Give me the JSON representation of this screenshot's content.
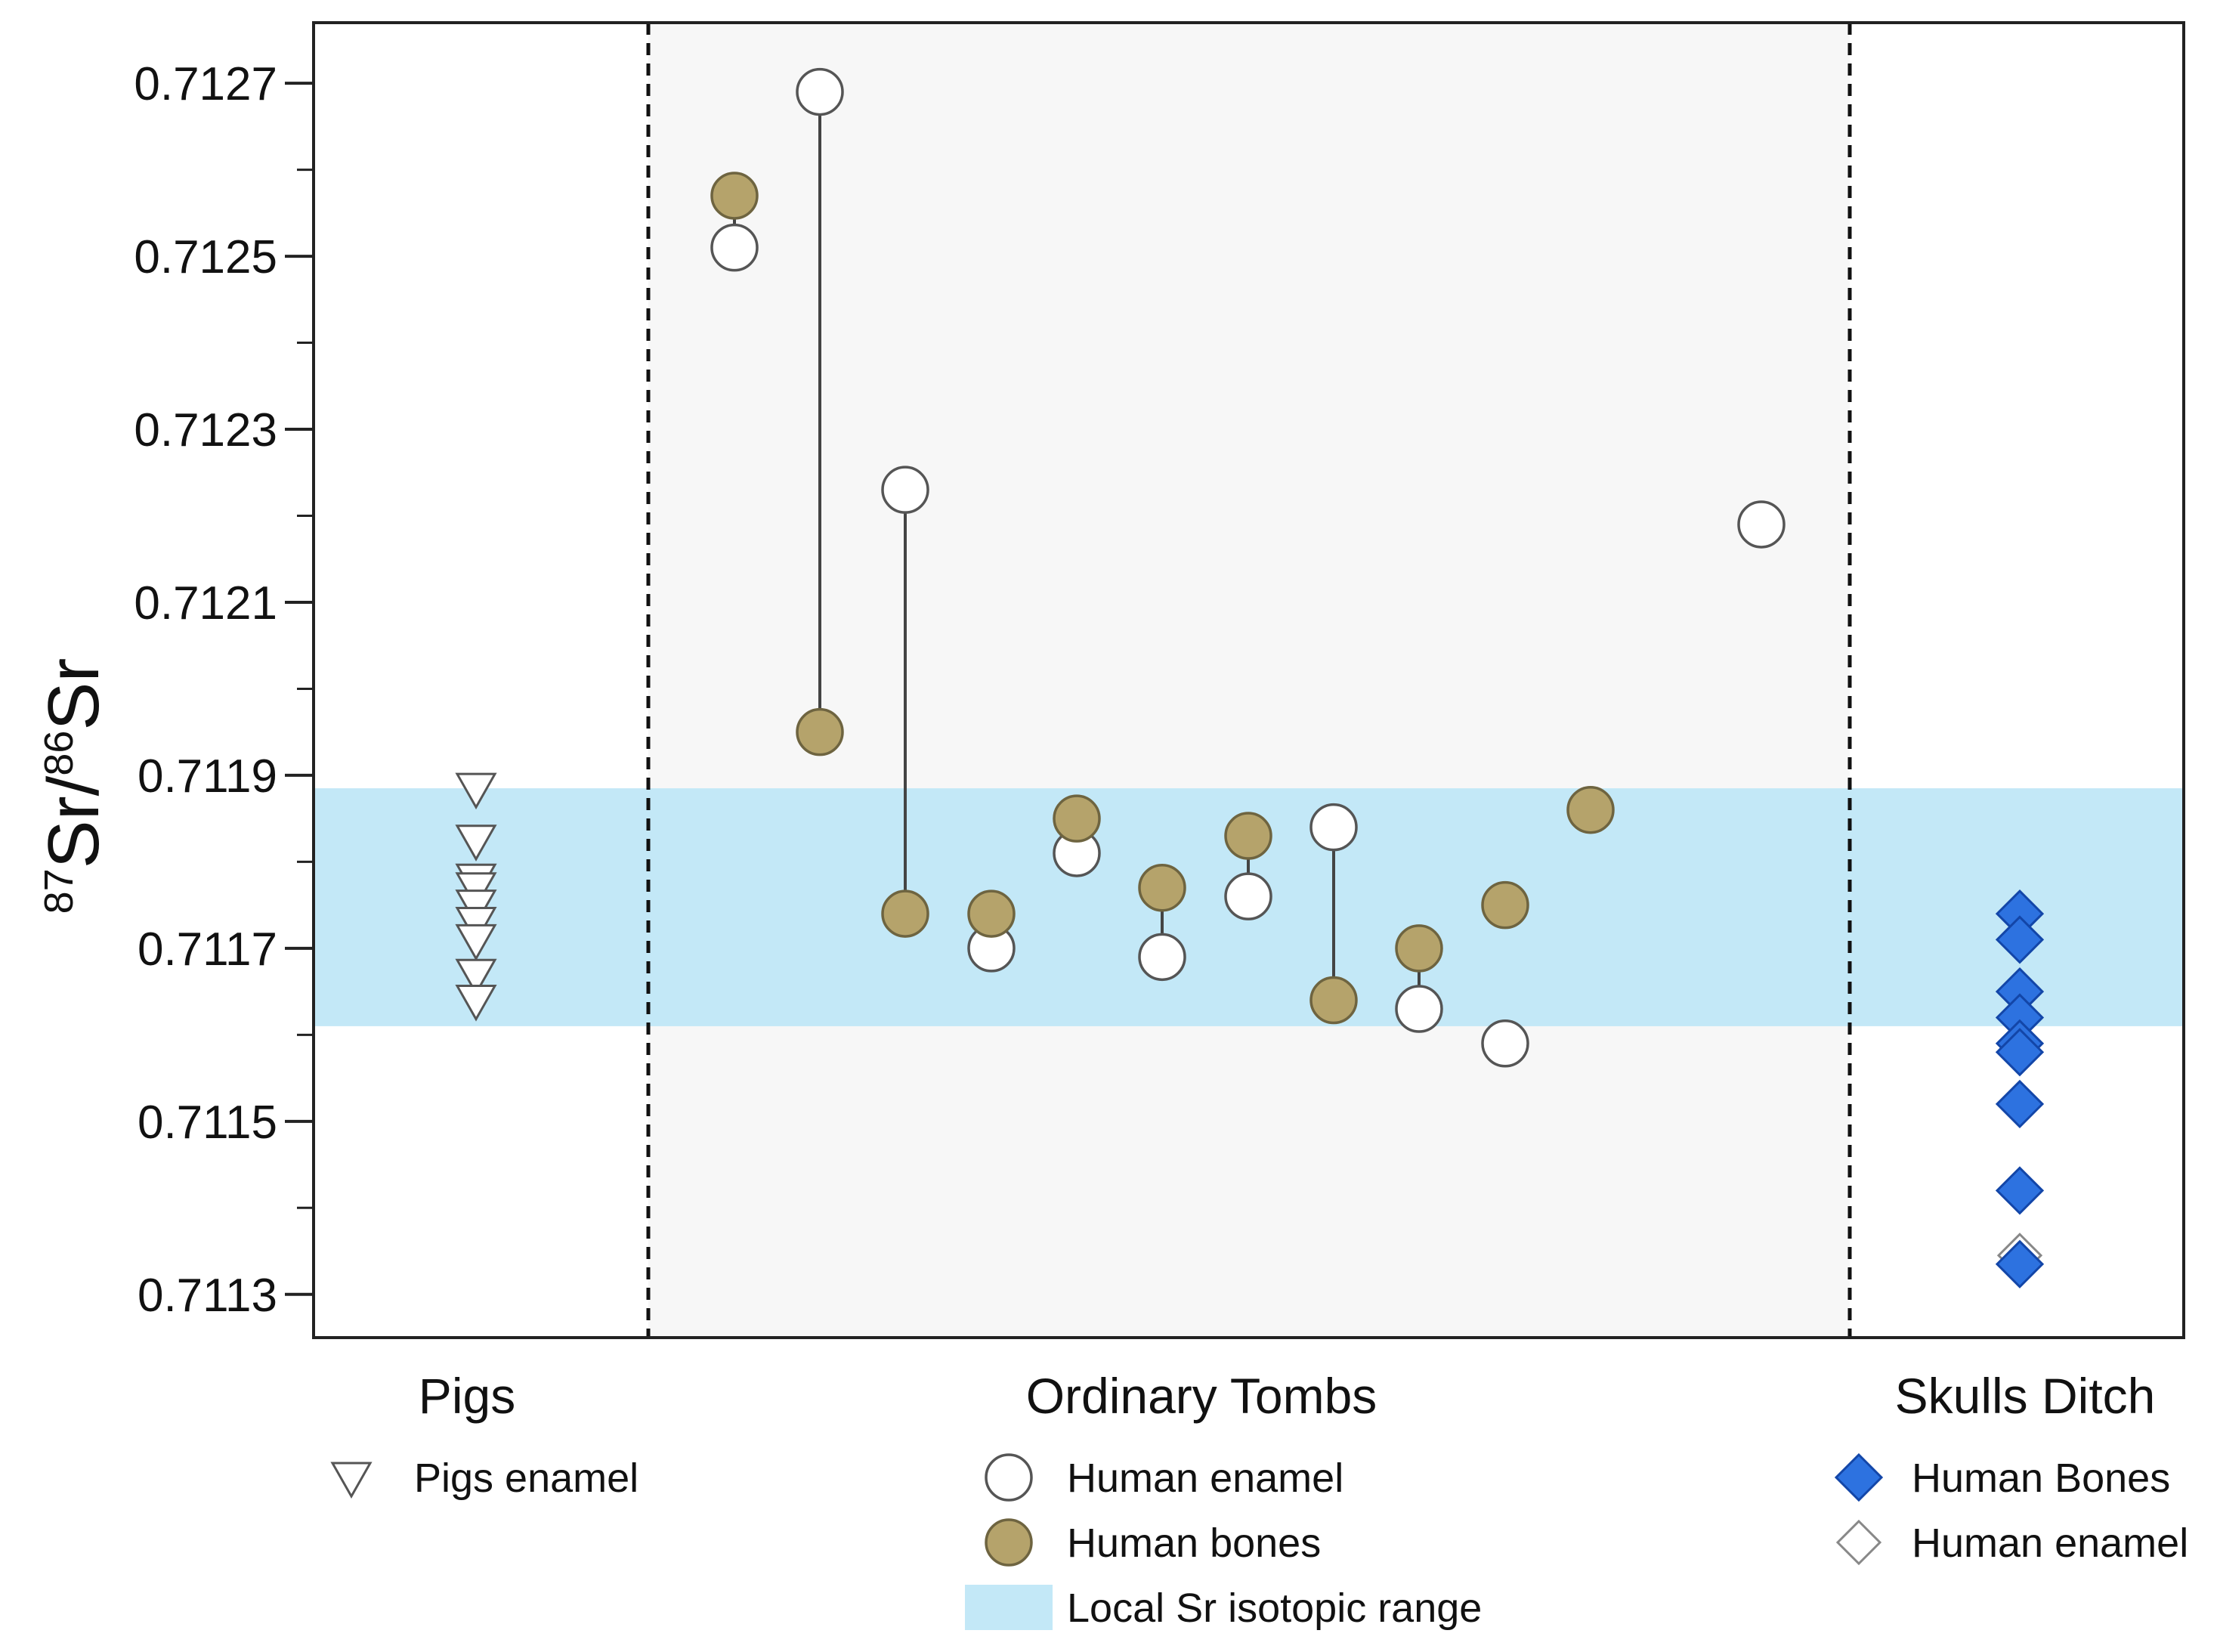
{
  "chart_data": {
    "type": "scatter",
    "title": "",
    "ylabel": {
      "sup1": "87",
      "main1": "Sr/",
      "sup2": "86",
      "main2": "Sr"
    },
    "xlabel": "",
    "ylim": [
      0.71125,
      0.71277
    ],
    "yticks": [
      "0.7113",
      "0.7115",
      "0.7117",
      "0.7119",
      "0.7121",
      "0.7123",
      "0.7125",
      "0.7127"
    ],
    "ytick_values": [
      0.7113,
      0.7115,
      0.7117,
      0.7119,
      0.7121,
      0.7123,
      0.7125,
      0.7127
    ],
    "minor_tick_step": 0.0001,
    "groups": [
      "Pigs",
      "Ordinary Tombs",
      "Skulls Ditch"
    ],
    "local_range": {
      "label": "Local Sr isotopic range",
      "ymin": 0.71161,
      "ymax": 0.711885,
      "color": "#c3e8f7"
    },
    "ordinary_bg_color": "#f7f7f7",
    "colors": {
      "bone": "#b5a36b",
      "bone_stroke": "#6e6440",
      "enamel": "#ffffff",
      "diamond": "#2d72e0",
      "diamond_stroke": "#1346a8"
    },
    "series": [
      {
        "name": "Pigs enamel",
        "group": "Pigs",
        "marker": "triangle-down",
        "points": [
          {
            "x": 0,
            "y": 0.711885
          },
          {
            "x": 0,
            "y": 0.711825
          },
          {
            "x": 0,
            "y": 0.71178
          },
          {
            "x": 0,
            "y": 0.71177
          },
          {
            "x": 0,
            "y": 0.71175
          },
          {
            "x": 0,
            "y": 0.71173
          },
          {
            "x": 0,
            "y": 0.71171
          },
          {
            "x": 0,
            "y": 0.71167
          },
          {
            "x": 0,
            "y": 0.71164
          }
        ]
      },
      {
        "name": "Human enamel",
        "group": "Ordinary Tombs",
        "marker": "circle-white",
        "points": [
          {
            "x": 1,
            "y": 0.71251
          },
          {
            "x": 2,
            "y": 0.71269
          },
          {
            "x": 3,
            "y": 0.71223
          },
          {
            "x": 4,
            "y": 0.7117
          },
          {
            "x": 5,
            "y": 0.71181
          },
          {
            "x": 6,
            "y": 0.71169
          },
          {
            "x": 7,
            "y": 0.71176
          },
          {
            "x": 8,
            "y": 0.71184
          },
          {
            "x": 9,
            "y": 0.71163
          },
          {
            "x": 10,
            "y": 0.71159
          },
          {
            "x": 12,
            "y": 0.71219
          }
        ]
      },
      {
        "name": "Human bones",
        "group": "Ordinary Tombs",
        "marker": "circle-olive",
        "points": [
          {
            "x": 1,
            "y": 0.71257
          },
          {
            "x": 2,
            "y": 0.71195
          },
          {
            "x": 3,
            "y": 0.71174
          },
          {
            "x": 4,
            "y": 0.71174
          },
          {
            "x": 5,
            "y": 0.71185
          },
          {
            "x": 6,
            "y": 0.71177
          },
          {
            "x": 7,
            "y": 0.71183
          },
          {
            "x": 8,
            "y": 0.71164
          },
          {
            "x": 9,
            "y": 0.7117
          },
          {
            "x": 10,
            "y": 0.71175
          },
          {
            "x": 11,
            "y": 0.71186
          }
        ]
      },
      {
        "name": "Human Bones",
        "group": "Skulls Ditch",
        "marker": "diamond-blue",
        "points": [
          {
            "x": 13,
            "y": 0.71174
          },
          {
            "x": 13,
            "y": 0.71171
          },
          {
            "x": 13,
            "y": 0.71165
          },
          {
            "x": 13,
            "y": 0.71162
          },
          {
            "x": 13,
            "y": 0.71159
          },
          {
            "x": 13,
            "y": 0.71158
          },
          {
            "x": 13,
            "y": 0.71152
          },
          {
            "x": 13,
            "y": 0.71142
          },
          {
            "x": 13,
            "y": 0.711335
          }
        ]
      },
      {
        "name": "Human enamel",
        "group": "Skulls Ditch",
        "marker": "diamond-white",
        "points": [
          {
            "x": 13,
            "y": 0.711345
          }
        ]
      }
    ],
    "links": [
      {
        "x": 1,
        "y1": 0.71251,
        "y2": 0.71257
      },
      {
        "x": 2,
        "y1": 0.71269,
        "y2": 0.71195
      },
      {
        "x": 3,
        "y1": 0.71223,
        "y2": 0.71174
      },
      {
        "x": 4,
        "y1": 0.7117,
        "y2": 0.71174
      },
      {
        "x": 5,
        "y1": 0.71181,
        "y2": 0.71185
      },
      {
        "x": 6,
        "y1": 0.71169,
        "y2": 0.71177
      },
      {
        "x": 7,
        "y1": 0.71176,
        "y2": 0.71183
      },
      {
        "x": 8,
        "y1": 0.71184,
        "y2": 0.71164
      },
      {
        "x": 9,
        "y1": 0.71163,
        "y2": 0.7117
      }
    ],
    "legends": {
      "pigs": [
        {
          "label": "Pigs enamel",
          "marker": "triangle-down"
        }
      ],
      "ordinary": [
        {
          "label": "Human enamel",
          "marker": "circle-white"
        },
        {
          "label": "Human bones",
          "marker": "circle-olive"
        },
        {
          "label": "Local Sr isotopic range",
          "marker": "band"
        }
      ],
      "skulls": [
        {
          "label": "Human Bones",
          "marker": "diamond-blue"
        },
        {
          "label": "Human enamel",
          "marker": "diamond-white"
        }
      ]
    }
  }
}
